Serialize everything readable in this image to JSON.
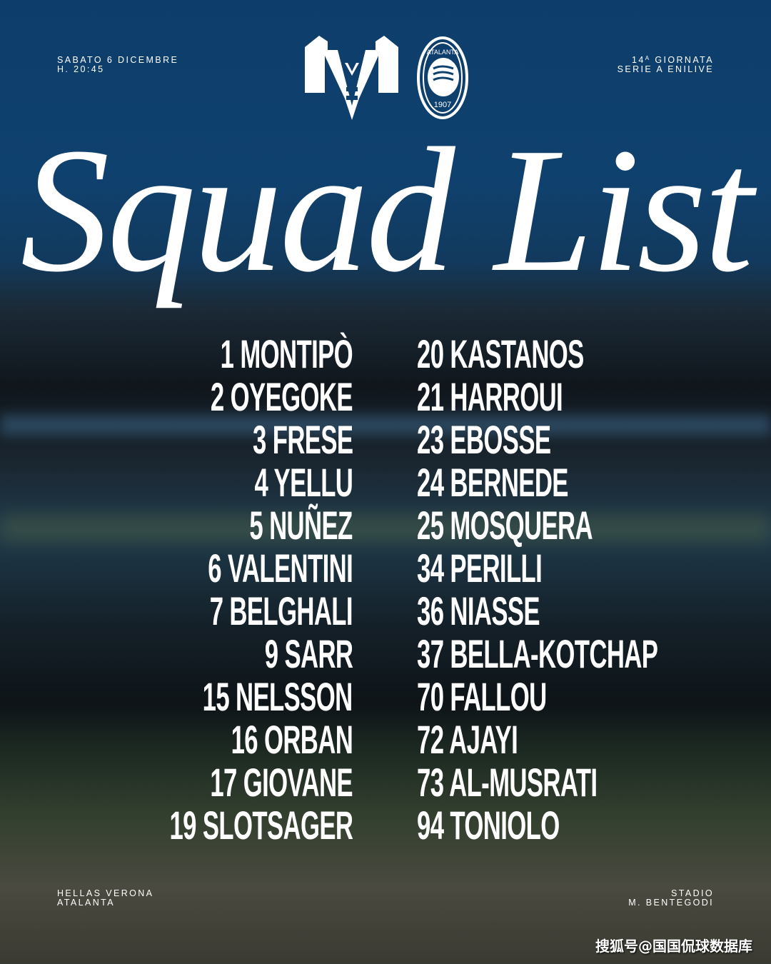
{
  "match": {
    "date": "SABATO 6 DICEMBRE",
    "time": "H. 20:45",
    "round_number": "14",
    "round_sup": "A",
    "round_label": " GIORNATA",
    "league": "SERIE A ENILIVE",
    "home_team": "HELLAS VERONA",
    "away_team": "ATALANTA",
    "stadium_line1": "STADIO",
    "stadium_line2": "M. BENTEGODI"
  },
  "logos": {
    "home": "hellas-verona-logo",
    "away": "atalanta-logo",
    "away_text": "ATALANTA",
    "away_year": "1907"
  },
  "title": "Squad List",
  "squad_left": [
    "1 MONTIPÒ",
    "2 OYEGOKE",
    "3 FRESE",
    "4 YELLU",
    "5 NUÑEZ",
    "6 VALENTINI",
    "7 BELGHALI",
    "9 SARR",
    "15 NELSSON",
    "16 ORBAN",
    "17 GIOVANE",
    "19 SLOTSAGER"
  ],
  "squad_right": [
    "20 KASTANOS",
    "21 HARROUI",
    "23 EBOSSE",
    "24 BERNEDE",
    "25 MOSQUERA",
    "34 PERILLI",
    "36 NIASSE",
    "37 BELLA-KOTCHAP",
    "70 FALLOU",
    "72 AJAYI",
    "73 AL-MUSRATI",
    "94 TONIOLO"
  ],
  "watermark": "搜狐号@国国侃球数据库"
}
